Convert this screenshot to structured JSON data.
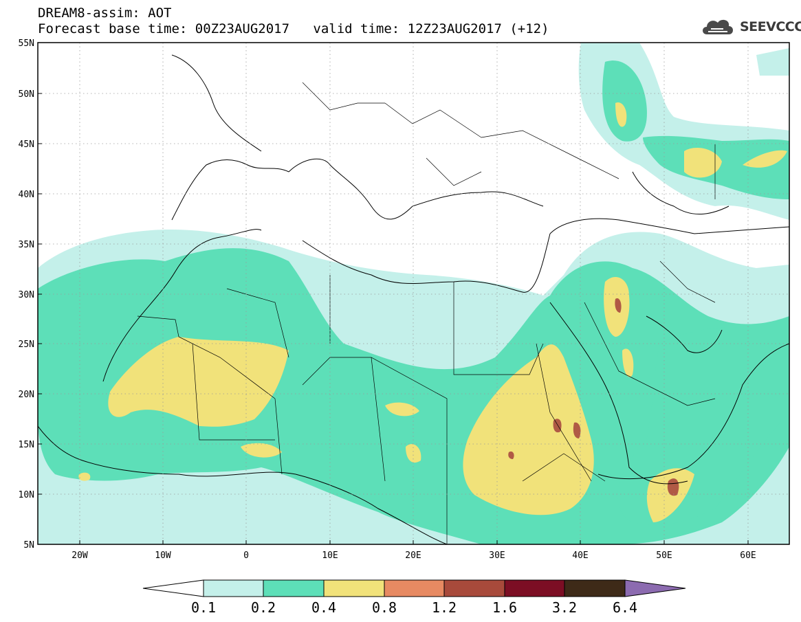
{
  "header": {
    "title_line1": "DREAM8-assim: AOT",
    "base_time": "Forecast base time: 00Z23AUG2017",
    "valid_time": "valid time: 12Z23AUG2017 (+12)"
  },
  "logo": {
    "text": "SEEVCCC",
    "icon": "cloud-icon"
  },
  "map": {
    "lat_labels": [
      "55N",
      "50N",
      "45N",
      "40N",
      "35N",
      "30N",
      "25N",
      "20N",
      "15N",
      "10N",
      "5N"
    ],
    "lon_labels": [
      "20W",
      "10W",
      "0",
      "10E",
      "20E",
      "30E",
      "40E",
      "50E",
      "60E"
    ],
    "grid": "dotted"
  },
  "colorbar": {
    "labels": [
      "0.1",
      "0.2",
      "0.4",
      "0.8",
      "1.2",
      "1.6",
      "3.2",
      "6.4"
    ],
    "colors": [
      "#ffffff",
      "#c4f0ea",
      "#5ddfb8",
      "#f1e27a",
      "#e78a62",
      "#a84a3b",
      "#7c0e24",
      "#3e2a18",
      "#8c6bb0"
    ]
  }
}
